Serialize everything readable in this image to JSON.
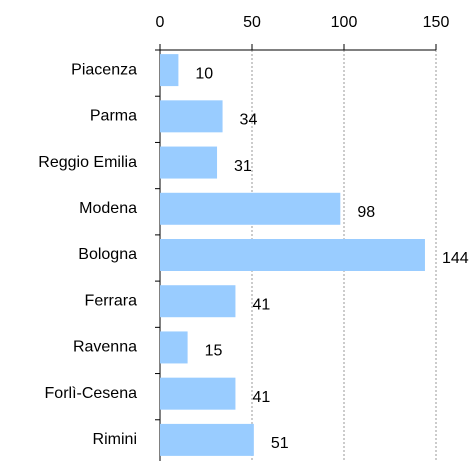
{
  "chart_data": {
    "type": "bar",
    "orientation": "horizontal",
    "categories": [
      "Piacenza",
      "Parma",
      "Reggio Emilia",
      "Modena",
      "Bologna",
      "Ferrara",
      "Ravenna",
      "Forlì-Cesena",
      "Rimini"
    ],
    "values": [
      10,
      34,
      31,
      98,
      144,
      41,
      15,
      41,
      51
    ],
    "color": "#99ccff",
    "xlim": [
      0,
      150
    ],
    "xticks": [
      0,
      50,
      100,
      150
    ],
    "grid": true
  }
}
